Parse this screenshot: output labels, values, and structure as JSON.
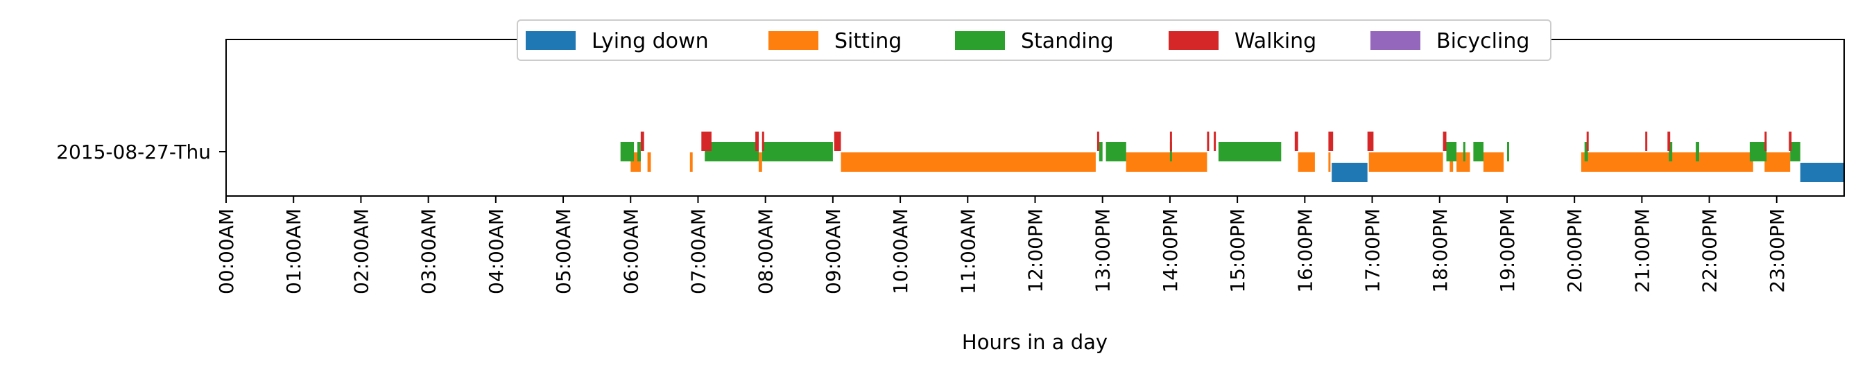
{
  "chart_data": {
    "type": "bar",
    "subtype": "activity-timeline",
    "xlabel": "Hours in a day",
    "ylabel": "",
    "xlim": [
      0,
      24
    ],
    "x_ticks": [
      "00:00AM",
      "01:00AM",
      "02:00AM",
      "03:00AM",
      "04:00AM",
      "05:00AM",
      "06:00AM",
      "07:00AM",
      "08:00AM",
      "09:00AM",
      "10:00AM",
      "11:00AM",
      "12:00PM",
      "13:00PM",
      "14:00PM",
      "15:00PM",
      "16:00PM",
      "17:00PM",
      "18:00PM",
      "19:00PM",
      "20:00PM",
      "21:00PM",
      "22:00PM",
      "23:00PM"
    ],
    "y_categories": [
      "2015-08-27-Thu"
    ],
    "grid": false,
    "legend_position": "top-center",
    "series": [
      {
        "name": "Lying down",
        "color": "#1f77b4",
        "intervals": [
          [
            16.4,
            16.93
          ],
          [
            23.35,
            24.0
          ]
        ]
      },
      {
        "name": "Sitting",
        "color": "#ff7f0e",
        "intervals": [
          [
            6.0,
            6.15
          ],
          [
            6.25,
            6.3
          ],
          [
            6.88,
            6.92
          ],
          [
            7.9,
            7.95
          ],
          [
            9.12,
            12.9
          ],
          [
            13.35,
            14.55
          ],
          [
            15.9,
            16.15
          ],
          [
            16.35,
            16.38
          ],
          [
            16.95,
            18.05
          ],
          [
            18.15,
            18.2
          ],
          [
            18.25,
            18.45
          ],
          [
            18.65,
            18.95
          ],
          [
            20.1,
            22.65
          ],
          [
            22.82,
            23.2
          ]
        ]
      },
      {
        "name": "Standing",
        "color": "#2ca02c",
        "intervals": [
          [
            5.85,
            6.05
          ],
          [
            6.1,
            6.15
          ],
          [
            7.1,
            7.9
          ],
          [
            7.95,
            9.0
          ],
          [
            12.95,
            13.0
          ],
          [
            13.05,
            13.35
          ],
          [
            14.0,
            14.03
          ],
          [
            14.72,
            15.65
          ],
          [
            18.1,
            18.25
          ],
          [
            18.35,
            18.38
          ],
          [
            18.5,
            18.65
          ],
          [
            19.0,
            19.03
          ],
          [
            20.15,
            20.2
          ],
          [
            21.4,
            21.45
          ],
          [
            21.8,
            21.85
          ],
          [
            22.6,
            22.85
          ],
          [
            23.2,
            23.35
          ]
        ]
      },
      {
        "name": "Walking",
        "color": "#d62728",
        "intervals": [
          [
            6.15,
            6.2
          ],
          [
            7.05,
            7.2
          ],
          [
            7.85,
            7.9
          ],
          [
            7.95,
            7.98
          ],
          [
            9.02,
            9.12
          ],
          [
            12.92,
            12.95
          ],
          [
            14.0,
            14.03
          ],
          [
            14.55,
            14.58
          ],
          [
            14.65,
            14.68
          ],
          [
            15.85,
            15.9
          ],
          [
            16.35,
            16.42
          ],
          [
            16.93,
            17.02
          ],
          [
            18.05,
            18.1
          ],
          [
            20.18,
            20.21
          ],
          [
            21.05,
            21.08
          ],
          [
            21.38,
            21.42
          ],
          [
            22.82,
            22.85
          ],
          [
            23.18,
            23.22
          ]
        ]
      },
      {
        "name": "Bicycling",
        "color": "#9467bd",
        "intervals": []
      }
    ]
  }
}
